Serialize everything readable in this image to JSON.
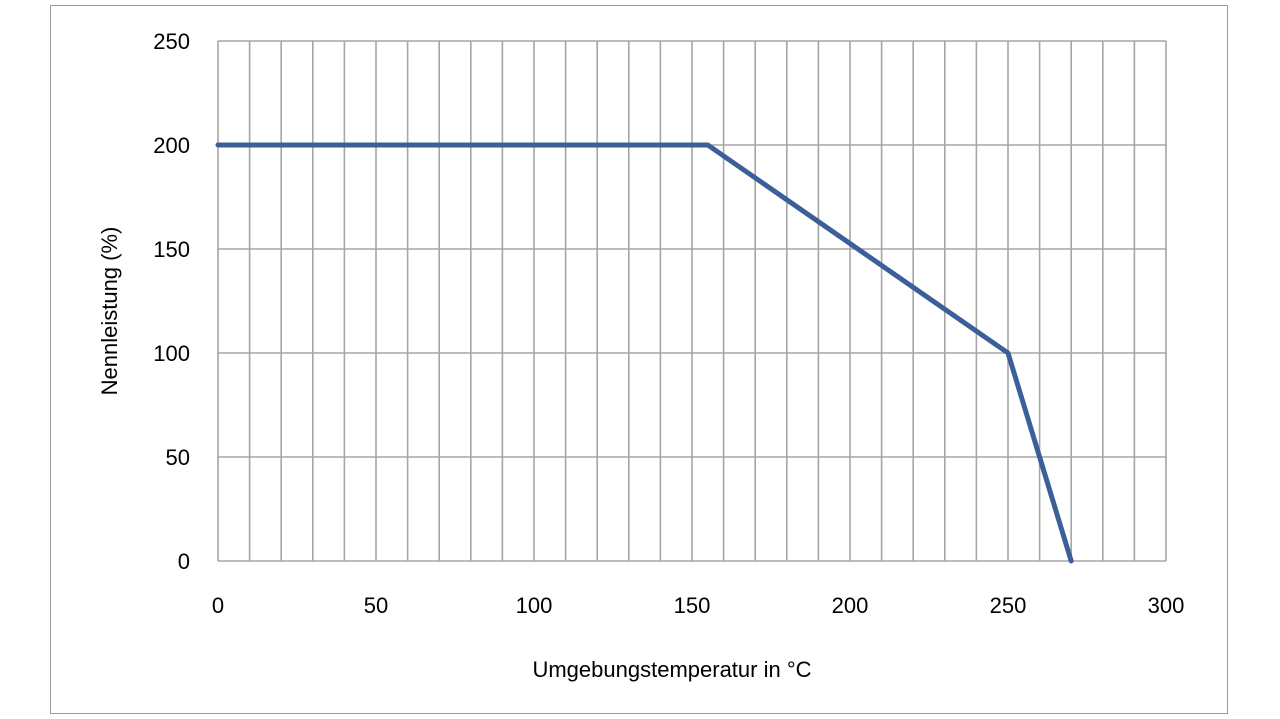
{
  "chart_data": {
    "type": "line",
    "title": "",
    "xlabel": "Umgebungstemperatur in °C",
    "ylabel": "Nennleistung (%)",
    "xlim": [
      0,
      300
    ],
    "ylim": [
      0,
      250
    ],
    "x_ticks": [
      0,
      50,
      100,
      150,
      200,
      250,
      300
    ],
    "y_ticks": [
      0,
      50,
      100,
      150,
      200,
      250
    ],
    "x_tick_labels": [
      "0",
      "50",
      "100",
      "150",
      "200",
      "250",
      "300"
    ],
    "y_tick_labels": [
      "0",
      "50",
      "100",
      "150",
      "200",
      "250"
    ],
    "x_minor_grid_step": 10,
    "grid": true,
    "legend": "none",
    "series": [
      {
        "x": [
          0,
          155,
          250,
          270
        ],
        "y": [
          200,
          200,
          100,
          0
        ],
        "color": "#3b5f99"
      }
    ],
    "grid_color": "#a6a6a6"
  }
}
